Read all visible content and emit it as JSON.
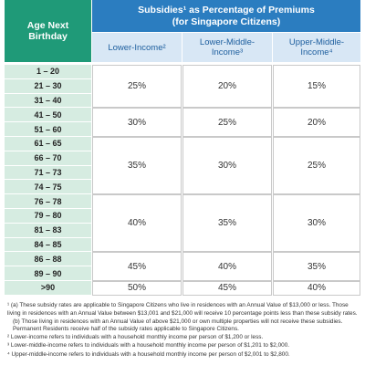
{
  "header": {
    "age_label": "Age Next Birthday",
    "subsidy_title": "Subsidies¹ as Percentage of Premiums",
    "subsidy_subtitle": "(for Singapore Citizens)",
    "columns": [
      "Lower-Income²",
      "Lower-Middle-Income³",
      "Upper-Middle-Income⁴"
    ]
  },
  "table": {
    "groups": [
      {
        "ages": [
          "1 – 20",
          "21 – 30",
          "31 – 40"
        ],
        "values": [
          "25%",
          "20%",
          "15%"
        ]
      },
      {
        "ages": [
          "41 – 50",
          "51 – 60"
        ],
        "values": [
          "30%",
          "25%",
          "20%"
        ]
      },
      {
        "ages": [
          "61 – 65",
          "66 – 70",
          "71 – 73",
          "74 – 75"
        ],
        "values": [
          "35%",
          "30%",
          "25%"
        ]
      },
      {
        "ages": [
          "76 – 78",
          "79 – 80",
          "81 – 83",
          "84 – 85"
        ],
        "values": [
          "40%",
          "35%",
          "30%"
        ]
      },
      {
        "ages": [
          "86 – 88",
          "89 – 90"
        ],
        "values": [
          "45%",
          "40%",
          "35%"
        ]
      },
      {
        "ages": [
          ">90"
        ],
        "values": [
          "50%",
          "45%",
          "40%"
        ]
      }
    ]
  },
  "footnotes": [
    "¹ (a) These subsidy rates are applicable to Singapore Citizens who live in residences with an Annual Value of $13,000 or less. Those living in residences with an Annual Value between $13,001 and $21,000 will receive 10 percentage points less than these subsidy rates.",
    "(b) Those living in residences with an Annual Value of above $21,000 or own multiple properties will not receive these subsidies. Permanent Residents receive half of the subsidy rates applicable to Singapore Citizens.",
    "² Lower-income refers to individuals with a household monthly income per person of $1,200 or less.",
    "³ Lower-middle-income refers to individuals with a household monthly income per person of $1,201 to $2,000.",
    "⁴ Upper-middle-income refers to individuals with a household monthly income per person of $2,001 to $2,800."
  ]
}
